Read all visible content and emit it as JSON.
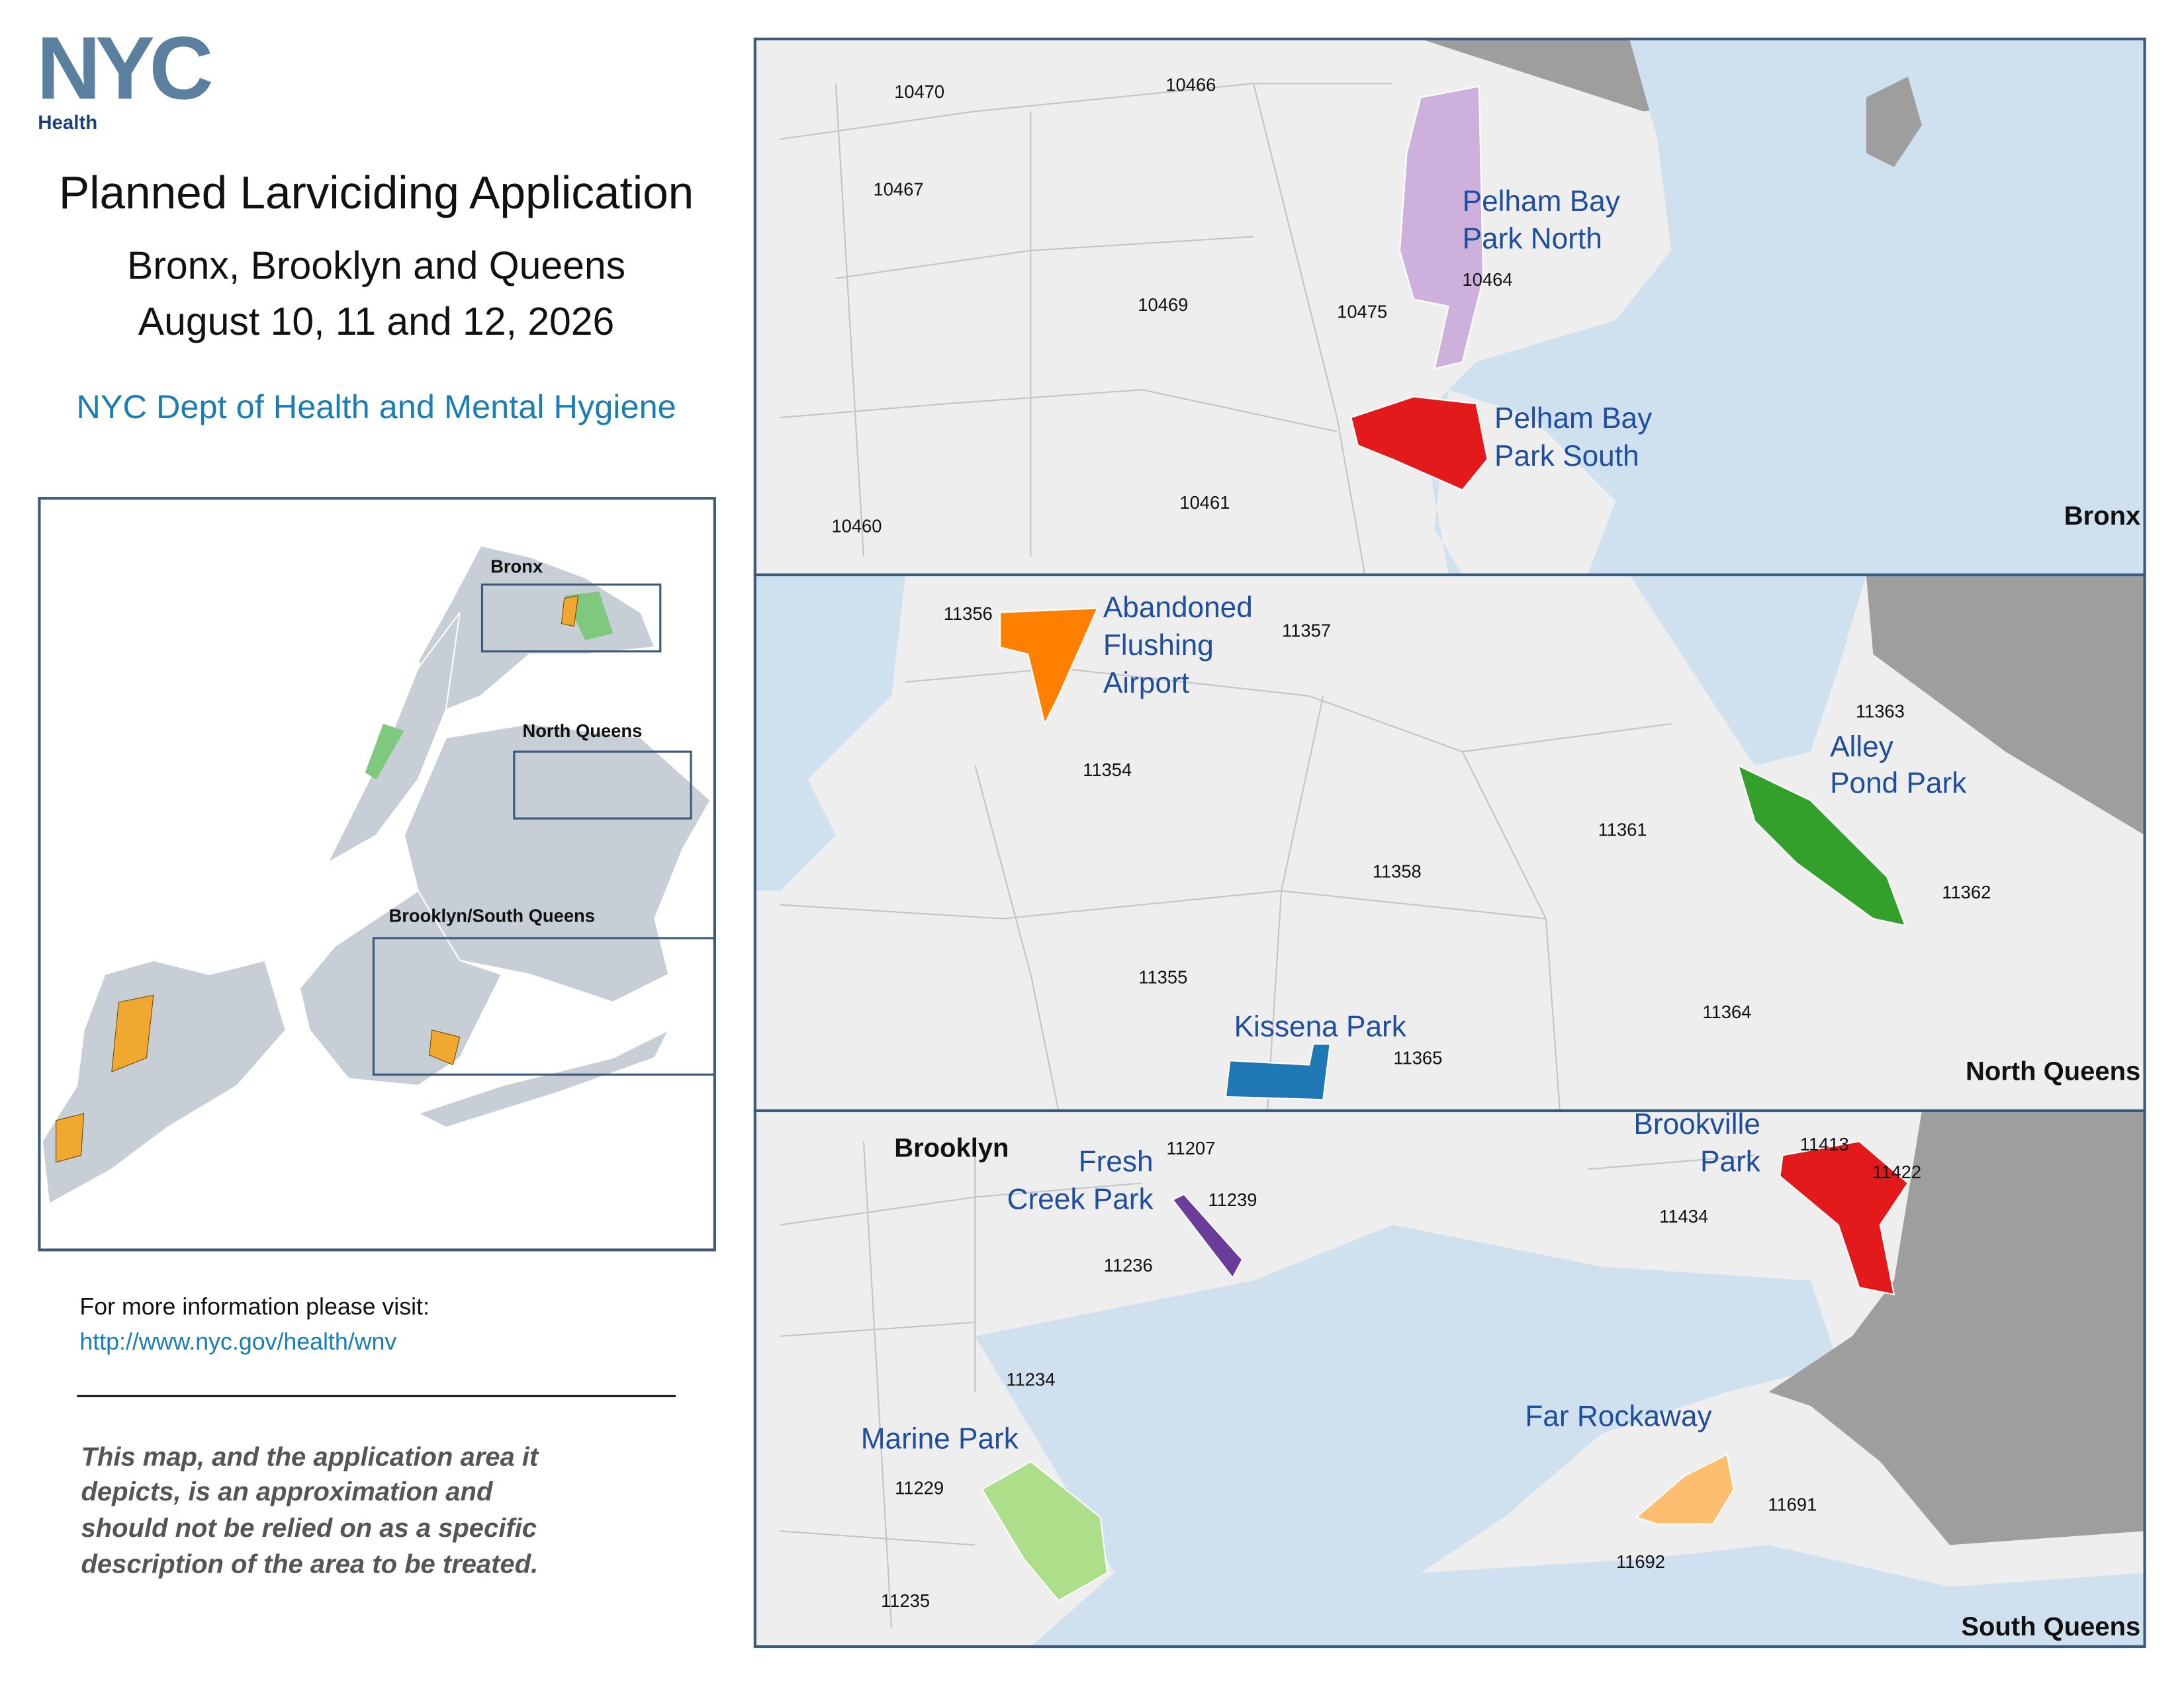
{
  "logo": {
    "wordmark": "NYC",
    "sub": "Health"
  },
  "title": "Planned Larviciding Application",
  "subtitle": [
    "Bronx, Brooklyn and Queens",
    "August 10, 11 and 12, 2026"
  ],
  "agency": "NYC Dept of Health and Mental Hygiene",
  "overview": {
    "labels": [
      "Bronx",
      "North Queens",
      "Brooklyn/South Queens"
    ]
  },
  "info": {
    "text": "For more information please visit:",
    "url": "http://www.nyc.gov/health/wnv"
  },
  "disclaimer": [
    "This map, and the application area it",
    "depicts, is an approximation and",
    "should not be relied on as a specific",
    "description of the area to be treated."
  ],
  "panels": [
    {
      "name": "Bronx",
      "zip_codes": [
        "10470",
        "10466",
        "10467",
        "10469",
        "10475",
        "10464",
        "10461",
        "10460"
      ],
      "parks": [
        {
          "name": [
            "Pelham Bay",
            "Park North"
          ],
          "color": "#cdb0dc"
        },
        {
          "name": [
            "Pelham Bay",
            "Park South"
          ],
          "color": "#e31a1c"
        }
      ]
    },
    {
      "name": "North Queens",
      "zip_codes": [
        "11356",
        "11357",
        "11354",
        "11363",
        "11361",
        "11358",
        "11362",
        "11355",
        "11364",
        "11365"
      ],
      "parks": [
        {
          "name": [
            "Abandoned",
            "Flushing",
            "Airport"
          ],
          "color": "#ff7f00"
        },
        {
          "name": [
            "Alley",
            "Pond Park"
          ],
          "color": "#33a02c"
        },
        {
          "name": [
            "Kissena Park"
          ],
          "color": "#1f78b4"
        }
      ]
    },
    {
      "name": "South Queens",
      "borough_label": "Brooklyn",
      "zip_codes": [
        "11207",
        "11239",
        "11236",
        "11413",
        "11422",
        "11434",
        "11234",
        "11229",
        "11691",
        "11692",
        "11235"
      ],
      "parks": [
        {
          "name": [
            "Fresh",
            "Creek Park"
          ],
          "color": "#6a3d9a"
        },
        {
          "name": [
            "Brookville",
            "Park"
          ],
          "color": "#e31a1c"
        },
        {
          "name": [
            "Marine Park"
          ],
          "color": "#addf8a"
        },
        {
          "name": [
            "Far Rockaway"
          ],
          "color": "#fdbf6f"
        }
      ]
    }
  ]
}
